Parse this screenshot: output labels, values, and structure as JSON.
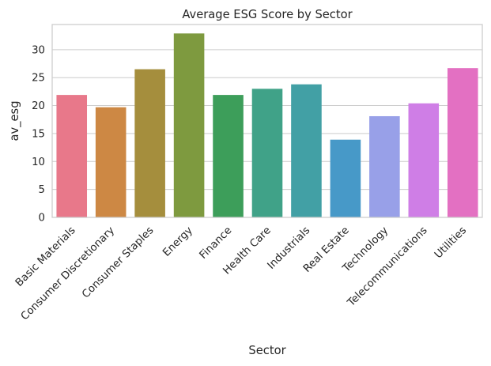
{
  "chart_data": {
    "type": "bar",
    "title": "Average ESG Score by Sector",
    "xlabel": "Sector",
    "ylabel": "av_esg",
    "categories": [
      "Basic Materials",
      "Consumer Discretionary",
      "Consumer Staples",
      "Energy",
      "Finance",
      "Health Care",
      "Industrials",
      "Real Estate",
      "Technology",
      "Telecommunications",
      "Utilities"
    ],
    "values": [
      21.9,
      19.7,
      26.5,
      32.9,
      21.9,
      23.0,
      23.8,
      13.9,
      18.1,
      20.4,
      26.7
    ],
    "colors": [
      "#e8788a",
      "#cd8844",
      "#a58e3d",
      "#7e9a3f",
      "#3d9e5a",
      "#40a288",
      "#42a0a5",
      "#4799c8",
      "#98a0e8",
      "#cf7ee6",
      "#e370c2"
    ],
    "ylim": [
      0,
      34.5
    ],
    "yticks": [
      0,
      5,
      10,
      15,
      20,
      25,
      30
    ],
    "grid": true,
    "legend": "none"
  }
}
